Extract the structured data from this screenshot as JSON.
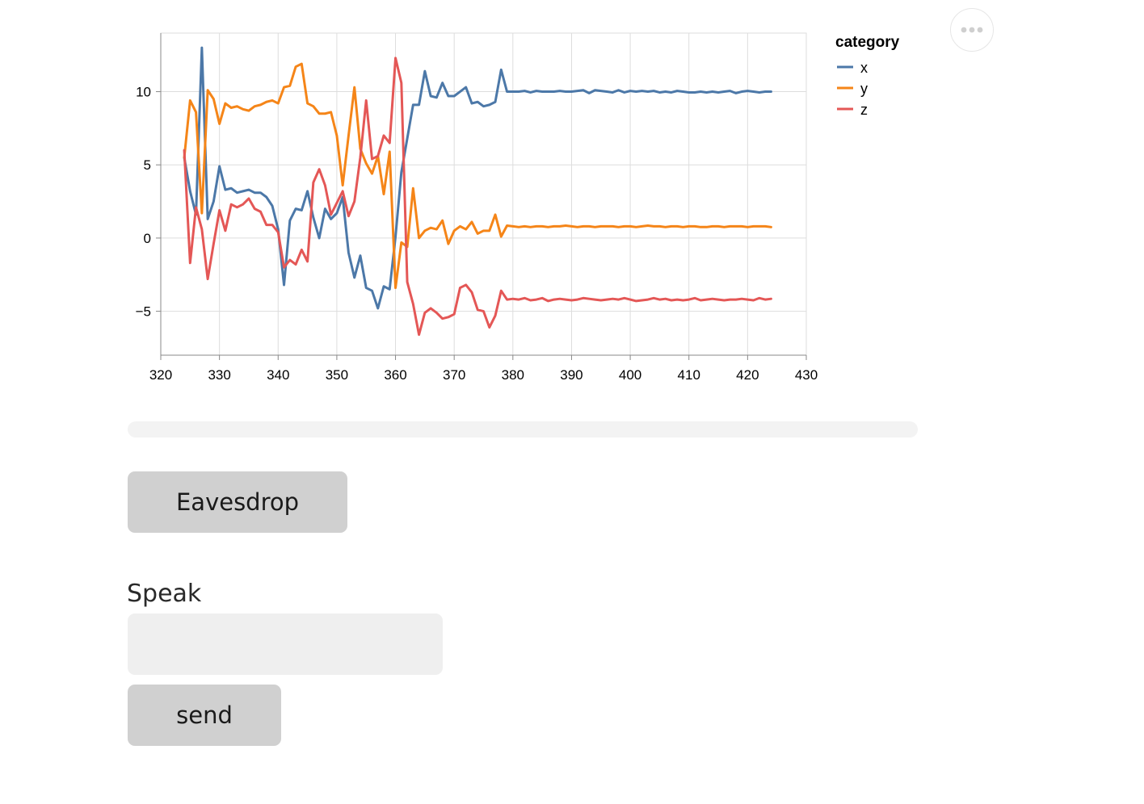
{
  "chart_data": {
    "type": "line",
    "title": "",
    "xlabel": "",
    "ylabel": "",
    "xlim": [
      320,
      430
    ],
    "ylim": [
      -8,
      14
    ],
    "x_ticks": [
      320,
      330,
      340,
      350,
      360,
      370,
      380,
      390,
      400,
      410,
      420,
      430
    ],
    "x_tick_labels": [
      "320",
      "330",
      "340",
      "350",
      "360",
      "370",
      "380",
      "390",
      "400",
      "410",
      "420",
      "430"
    ],
    "y_ticks": [
      -5,
      0,
      5,
      10
    ],
    "y_tick_labels": [
      "−5",
      "0",
      "5",
      "10"
    ],
    "grid": true,
    "legend": {
      "title": "category",
      "placement": "right-top"
    },
    "x": [
      324,
      325,
      326,
      327,
      328,
      329,
      330,
      331,
      332,
      333,
      334,
      335,
      336,
      337,
      338,
      339,
      340,
      341,
      342,
      343,
      344,
      345,
      346,
      347,
      348,
      349,
      350,
      351,
      352,
      353,
      354,
      355,
      356,
      357,
      358,
      359,
      360,
      361,
      362,
      363,
      364,
      365,
      366,
      367,
      368,
      369,
      370,
      371,
      372,
      373,
      374,
      375,
      376,
      377,
      378,
      379,
      380,
      381,
      382,
      383,
      384,
      385,
      386,
      387,
      388,
      389,
      390,
      391,
      392,
      393,
      394,
      395,
      396,
      397,
      398,
      399,
      400,
      401,
      402,
      403,
      404,
      405,
      406,
      407,
      408,
      409,
      410,
      411,
      412,
      413,
      414,
      415,
      416,
      417,
      418,
      419,
      420,
      421,
      422,
      423,
      424
    ],
    "series": [
      {
        "name": "x",
        "color": "#4c78a8",
        "values": [
          5.5,
          3.2,
          1.6,
          13.0,
          1.3,
          2.5,
          4.9,
          3.3,
          3.4,
          3.1,
          3.2,
          3.3,
          3.1,
          3.1,
          2.8,
          2.2,
          0.6,
          -3.2,
          1.2,
          2.0,
          1.9,
          3.2,
          1.4,
          0.0,
          2.0,
          1.3,
          1.7,
          2.8,
          -1.0,
          -2.7,
          -1.2,
          -3.4,
          -3.6,
          -4.8,
          -3.3,
          -3.5,
          0.1,
          4.5,
          6.8,
          9.1,
          9.1,
          11.4,
          9.7,
          9.6,
          10.6,
          9.7,
          9.7,
          10.0,
          10.3,
          9.2,
          9.3,
          9.0,
          9.1,
          9.3,
          11.5,
          10.0,
          10.0,
          10.0,
          10.05,
          9.95,
          10.05,
          10.0,
          10.0,
          10.0,
          10.05,
          10.0,
          10.0,
          10.05,
          10.1,
          9.9,
          10.1,
          10.05,
          10.0,
          9.95,
          10.1,
          9.95,
          10.05,
          10.0,
          10.05,
          10.0,
          10.05,
          9.95,
          10.0,
          9.95,
          10.05,
          10.0,
          9.95,
          9.95,
          10.0,
          9.95,
          10.0,
          9.95,
          10.0,
          10.05,
          9.9,
          10.0,
          10.05,
          10.0,
          9.95,
          10.0,
          10.0
        ]
      },
      {
        "name": "y",
        "color": "#f58518",
        "values": [
          5.5,
          9.4,
          8.6,
          1.7,
          10.1,
          9.5,
          7.8,
          9.2,
          8.9,
          9.0,
          8.8,
          8.7,
          9.0,
          9.1,
          9.3,
          9.4,
          9.2,
          10.3,
          10.4,
          11.7,
          11.9,
          9.2,
          9.0,
          8.5,
          8.5,
          8.6,
          7.0,
          3.6,
          7.0,
          10.3,
          6.1,
          5.1,
          4.4,
          5.6,
          3.0,
          5.9,
          -3.4,
          -0.3,
          -0.6,
          3.4,
          0.0,
          0.5,
          0.7,
          0.6,
          1.2,
          -0.4,
          0.5,
          0.8,
          0.6,
          1.1,
          0.3,
          0.5,
          0.5,
          1.6,
          0.1,
          0.85,
          0.8,
          0.75,
          0.8,
          0.75,
          0.8,
          0.8,
          0.75,
          0.8,
          0.8,
          0.85,
          0.8,
          0.75,
          0.8,
          0.8,
          0.75,
          0.8,
          0.8,
          0.8,
          0.75,
          0.8,
          0.8,
          0.75,
          0.8,
          0.85,
          0.8,
          0.8,
          0.75,
          0.8,
          0.8,
          0.75,
          0.8,
          0.8,
          0.75,
          0.75,
          0.8,
          0.8,
          0.75,
          0.8,
          0.8,
          0.8,
          0.75,
          0.8,
          0.8,
          0.8,
          0.75
        ]
      },
      {
        "name": "z",
        "color": "#e45756",
        "values": [
          6.0,
          -1.7,
          2.1,
          0.6,
          -2.8,
          -0.4,
          1.9,
          0.5,
          2.3,
          2.1,
          2.3,
          2.7,
          2.0,
          1.8,
          0.9,
          0.9,
          0.4,
          -2.0,
          -1.5,
          -1.8,
          -0.8,
          -1.6,
          3.8,
          4.7,
          3.6,
          1.6,
          2.4,
          3.2,
          1.5,
          2.5,
          5.5,
          9.4,
          5.4,
          5.6,
          7.0,
          6.5,
          12.3,
          10.6,
          -3.0,
          -4.5,
          -6.6,
          -5.1,
          -4.8,
          -5.1,
          -5.5,
          -5.4,
          -5.2,
          -3.4,
          -3.2,
          -3.7,
          -4.9,
          -5.0,
          -6.1,
          -5.3,
          -3.6,
          -4.2,
          -4.15,
          -4.2,
          -4.1,
          -4.25,
          -4.2,
          -4.1,
          -4.3,
          -4.2,
          -4.15,
          -4.2,
          -4.25,
          -4.2,
          -4.1,
          -4.15,
          -4.2,
          -4.25,
          -4.2,
          -4.15,
          -4.2,
          -4.1,
          -4.2,
          -4.3,
          -4.25,
          -4.2,
          -4.1,
          -4.2,
          -4.15,
          -4.25,
          -4.2,
          -4.25,
          -4.2,
          -4.1,
          -4.25,
          -4.2,
          -4.15,
          -4.2,
          -4.25,
          -4.2,
          -4.2,
          -4.15,
          -4.2,
          -4.25,
          -4.1,
          -4.2,
          -4.15
        ]
      }
    ]
  },
  "menu": {
    "icon": "more-horizontal-icon"
  },
  "progress": {
    "value": 0
  },
  "buttons": {
    "eavesdrop": "Eavesdrop",
    "send": "send"
  },
  "speak": {
    "label": "Speak",
    "value": "",
    "placeholder": ""
  }
}
